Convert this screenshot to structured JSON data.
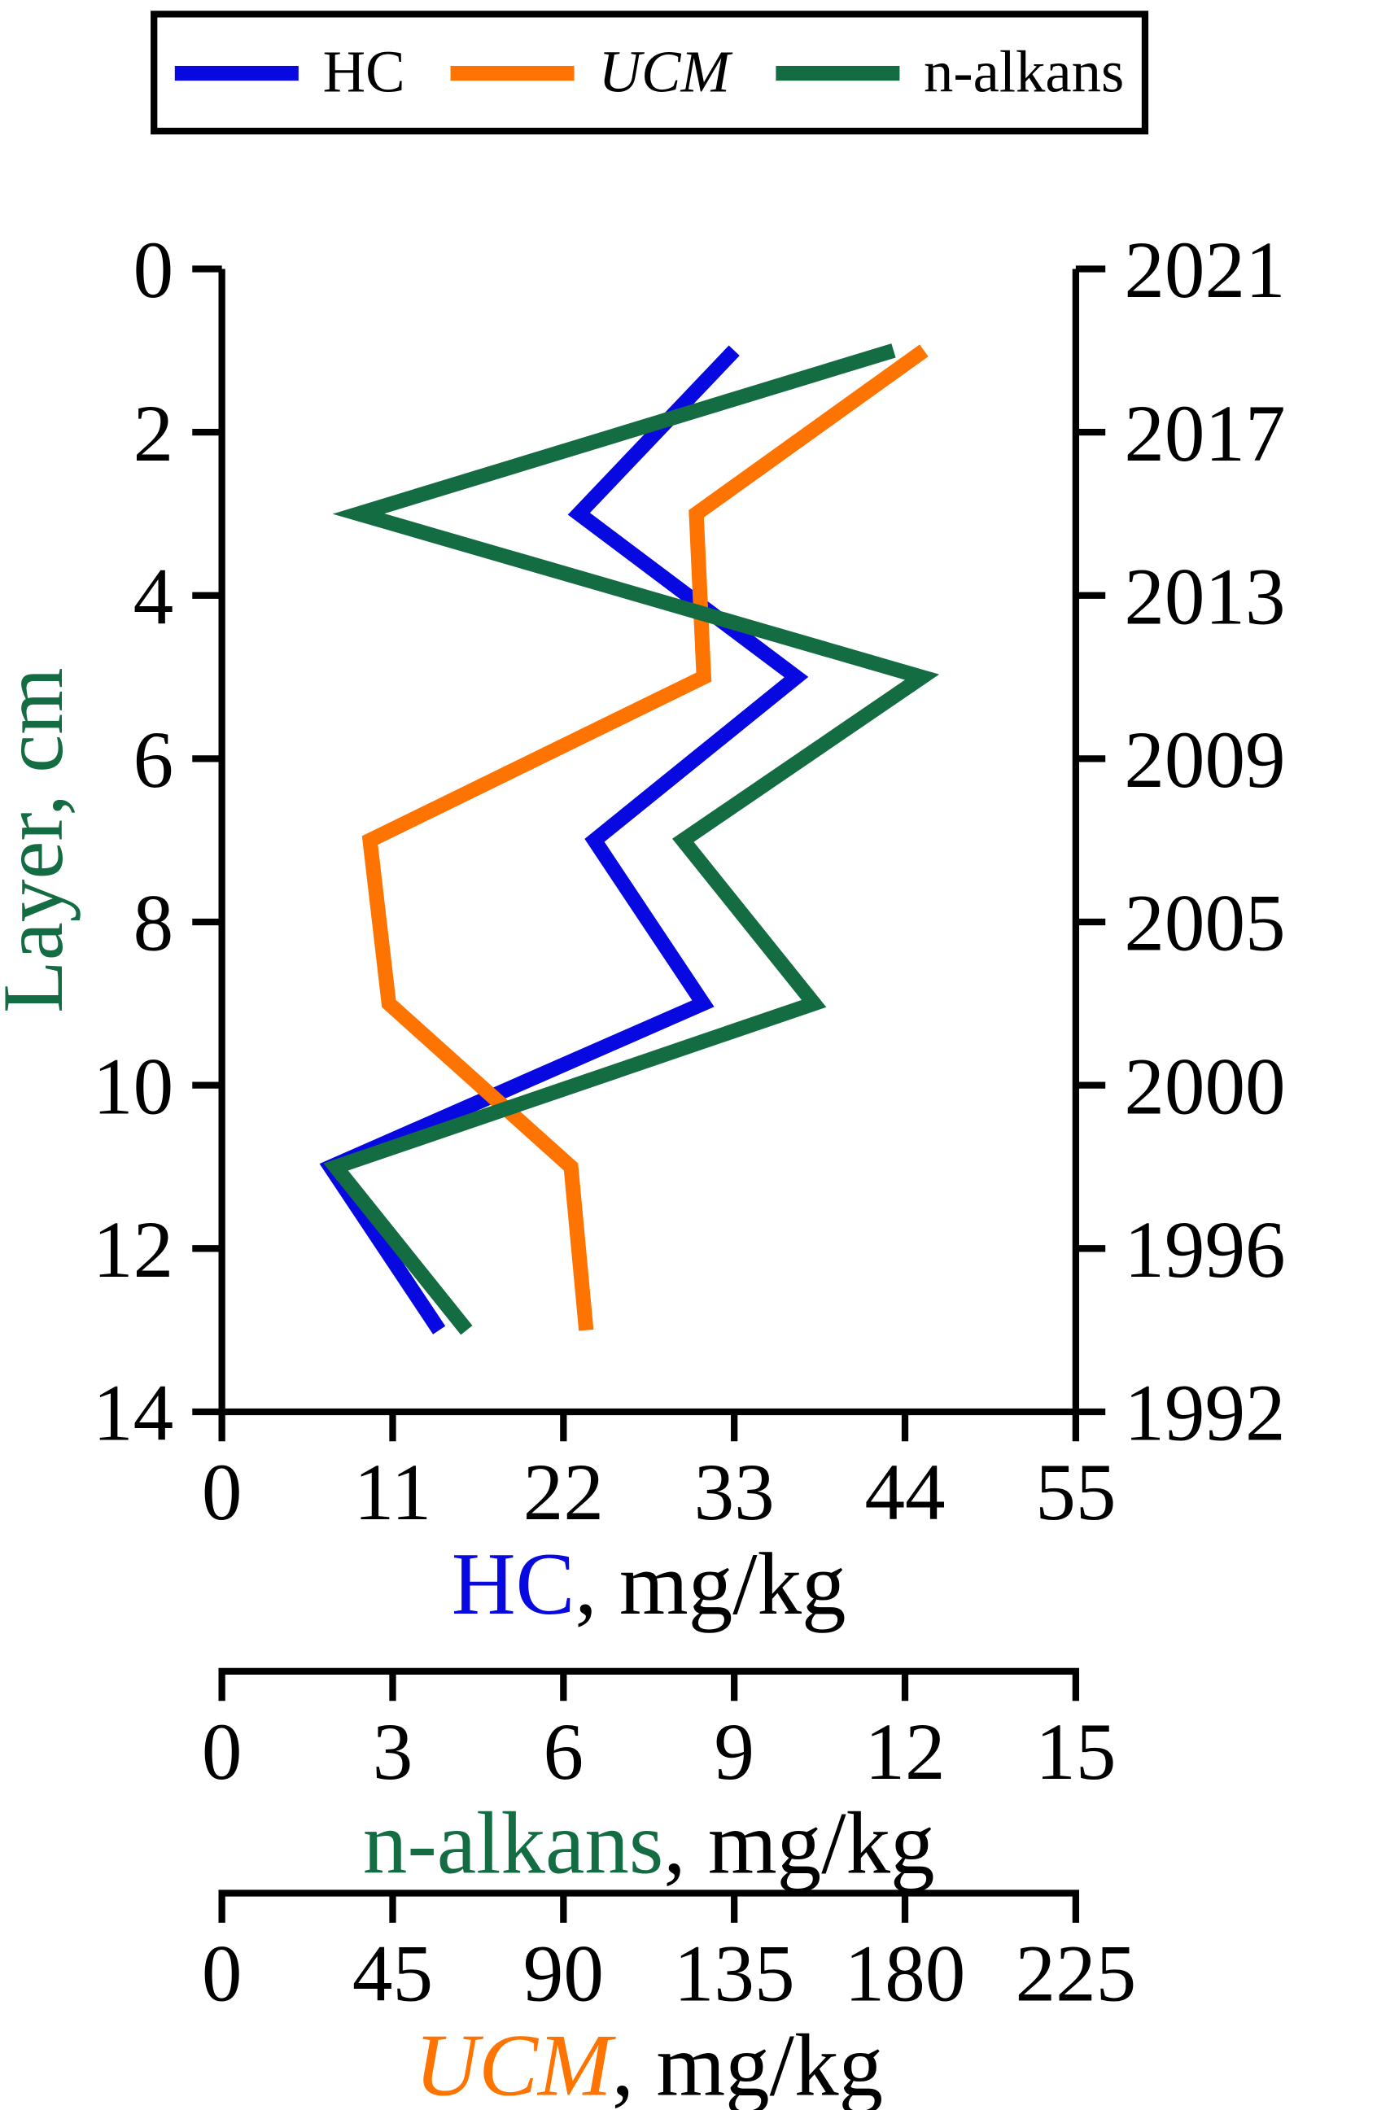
{
  "legend": {
    "items": [
      {
        "label": "HC",
        "color": "#0808e0",
        "italic": false
      },
      {
        "label": "UCM",
        "color": "#ff7300",
        "italic": true
      },
      {
        "label": "n-alkans",
        "color": "#146c43",
        "italic": false
      }
    ]
  },
  "chart_data": {
    "type": "line",
    "title": "",
    "depth_axis": {
      "label": "Layer, cm",
      "label_color": "#146c43",
      "min": 0,
      "max": 14,
      "ticks": [
        0,
        2,
        4,
        6,
        8,
        10,
        12,
        14
      ]
    },
    "year_axis": {
      "ticks": [
        "2021",
        "2017",
        "2013",
        "2009",
        "2005",
        "2000",
        "1996",
        "1992"
      ]
    },
    "depths_cm": [
      1,
      3,
      5,
      7,
      9,
      11,
      13
    ],
    "x_axes": [
      {
        "id": "hc",
        "title_main": "HC",
        "title_suffix": ", mg/kg",
        "color": "#0808e0",
        "italic": false,
        "min": 0,
        "max": 55,
        "ticks": [
          0,
          11,
          22,
          33,
          44,
          55
        ]
      },
      {
        "id": "alk",
        "title_main": "n-alkans",
        "title_suffix": ", mg/kg",
        "color": "#146c43",
        "italic": false,
        "min": 0,
        "max": 15,
        "ticks": [
          0,
          3,
          6,
          9,
          12,
          15
        ]
      },
      {
        "id": "ucm",
        "title_main": "UCM",
        "title_suffix": ", mg/kg",
        "color": "#ff7300",
        "italic": true,
        "min": 0,
        "max": 225,
        "ticks": [
          0,
          45,
          90,
          135,
          180,
          225
        ]
      }
    ],
    "series": [
      {
        "name": "HC",
        "axis": "hc",
        "color": "#0808e0",
        "values": [
          33,
          23,
          37,
          24,
          31,
          7,
          14
        ]
      },
      {
        "name": "UCM",
        "axis": "ucm",
        "color": "#ff7300",
        "values": [
          185,
          125,
          127,
          39,
          44,
          92,
          96
        ]
      },
      {
        "name": "n-alkans",
        "axis": "alk",
        "color": "#146c43",
        "values": [
          11.8,
          2.4,
          12.3,
          8.1,
          10.4,
          2.0,
          4.3
        ]
      }
    ]
  }
}
